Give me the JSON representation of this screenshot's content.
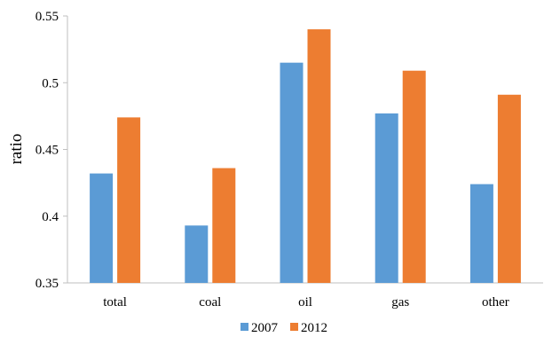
{
  "chart_data": {
    "type": "bar",
    "title": "",
    "xlabel": "",
    "ylabel": "ratio",
    "ylim": [
      0.35,
      0.55
    ],
    "yticks": [
      0.35,
      0.4,
      0.45,
      0.5,
      0.55
    ],
    "ytick_labels": [
      "0.35",
      "0.4",
      "0.45",
      "0.5",
      "0.55"
    ],
    "grid": false,
    "legend_position": "bottom",
    "categories": [
      "total",
      "coal",
      "oil",
      "gas",
      "other"
    ],
    "series": [
      {
        "name": "2007",
        "color": "#5B9BD5",
        "values": [
          0.432,
          0.393,
          0.515,
          0.477,
          0.424
        ]
      },
      {
        "name": "2012",
        "color": "#ED7D31",
        "values": [
          0.474,
          0.436,
          0.54,
          0.509,
          0.491
        ]
      }
    ]
  }
}
